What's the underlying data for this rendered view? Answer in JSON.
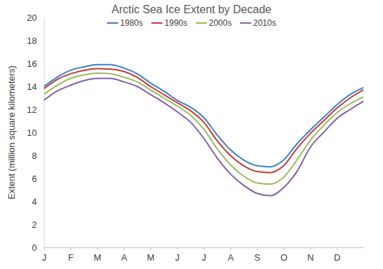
{
  "chart_data": {
    "type": "line",
    "title": "Arctic Sea Ice Extent by Decade",
    "y_label": "Extent (million square kilometers)",
    "categories": [
      "J",
      null,
      "F",
      null,
      "M",
      null,
      "A",
      null,
      "M",
      null,
      "J",
      null,
      "J",
      null,
      "A",
      null,
      "S",
      null,
      "O",
      null,
      "N",
      null,
      "D",
      null,
      null
    ],
    "series": [
      {
        "name": "1980s",
        "color": "#3b7fc4",
        "values": [
          14.0,
          14.8,
          15.4,
          15.7,
          15.9,
          15.9,
          15.6,
          15.1,
          14.3,
          13.6,
          12.8,
          12.2,
          11.3,
          9.8,
          8.5,
          7.6,
          7.1,
          7.0,
          7.6,
          9.0,
          10.2,
          11.3,
          12.4,
          13.3,
          13.9
        ]
      },
      {
        "name": "1990s",
        "color": "#c0393b",
        "values": [
          13.8,
          14.6,
          15.1,
          15.4,
          15.55,
          15.5,
          15.3,
          14.8,
          14.0,
          13.3,
          12.6,
          11.9,
          10.9,
          9.3,
          8.0,
          7.1,
          6.6,
          6.5,
          7.1,
          8.6,
          9.9,
          11.0,
          12.1,
          13.0,
          13.7
        ]
      },
      {
        "name": "2000s",
        "color": "#9bbb59",
        "values": [
          13.3,
          14.1,
          14.7,
          15.0,
          15.15,
          15.1,
          14.8,
          14.4,
          13.7,
          13.0,
          12.3,
          11.5,
          10.3,
          8.6,
          7.2,
          6.2,
          5.6,
          5.5,
          6.1,
          7.6,
          9.3,
          10.6,
          11.7,
          12.5,
          13.1
        ]
      },
      {
        "name": "2010s",
        "color": "#7f5fa6",
        "values": [
          12.8,
          13.6,
          14.1,
          14.5,
          14.7,
          14.7,
          14.4,
          14.0,
          13.3,
          12.6,
          11.8,
          10.9,
          9.5,
          7.8,
          6.4,
          5.4,
          4.7,
          4.5,
          5.2,
          6.6,
          8.7,
          10.0,
          11.2,
          12.0,
          12.7
        ]
      }
    ],
    "ylim": [
      0,
      20
    ],
    "yticks": [
      0,
      2,
      4,
      6,
      8,
      10,
      12,
      14,
      16,
      18,
      20
    ],
    "grid": false,
    "legend": "top"
  }
}
